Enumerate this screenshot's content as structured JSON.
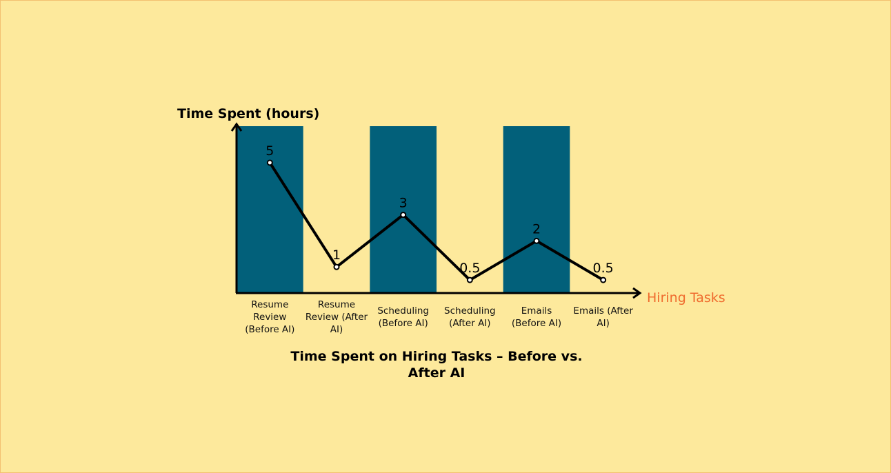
{
  "chart_data": {
    "type": "line",
    "title_lines": [
      "Time Spent on Hiring Tasks – Before vs.",
      "After AI"
    ],
    "xlabel": "Hiring Tasks",
    "ylabel": "Time Spent (hours)",
    "categories": [
      [
        "Resume",
        "Review",
        "(Before AI)"
      ],
      [
        "Resume",
        "Review (After",
        "AI)"
      ],
      [
        "Scheduling",
        "(Before AI)"
      ],
      [
        "Scheduling",
        "(After AI)"
      ],
      [
        "Emails",
        "(Before AI)"
      ],
      [
        "Emails (After",
        "AI)"
      ]
    ],
    "values": [
      5,
      1,
      3,
      0.5,
      2,
      0.5
    ],
    "data_labels": [
      "5",
      "1",
      "3",
      "0.5",
      "2",
      "0.5"
    ],
    "ylim": [
      0,
      6.4
    ],
    "grid": false,
    "legend": "none",
    "colors": {
      "background": "#fde99c",
      "band": "#02607a",
      "line": "#000000",
      "xlabel": "#ef6b2e"
    }
  }
}
